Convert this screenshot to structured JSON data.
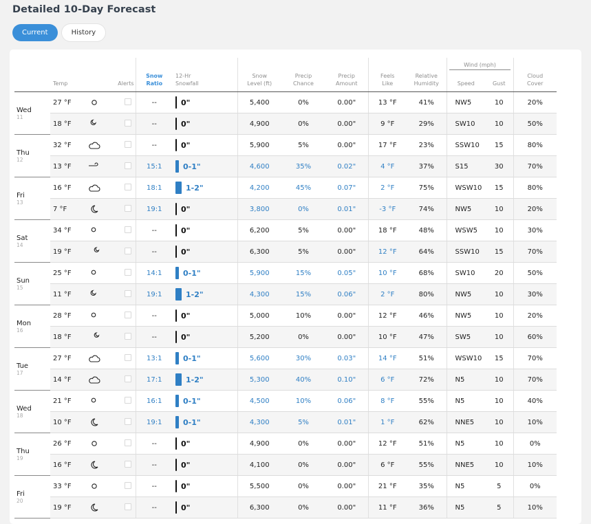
{
  "title": "Detailed 10-Day Forecast",
  "tabs": [
    {
      "label": "Current",
      "active": true
    },
    {
      "label": "History",
      "active": false
    }
  ],
  "colors": {
    "accent": "#3a8fd9",
    "snow": "#2f7fc4"
  },
  "headers": {
    "temp": "Temp",
    "alerts": "Alerts",
    "snow_ratio": [
      "Snow",
      "Ratio"
    ],
    "snowfall": [
      "12-Hr",
      "Snowfall"
    ],
    "snow_level": [
      "Snow",
      "Level (ft)"
    ],
    "precip_chance": [
      "Precip",
      "Chance"
    ],
    "precip_amount": [
      "Precip",
      "Amount"
    ],
    "feels_like": [
      "Feels",
      "Like"
    ],
    "humidity": [
      "Relative",
      "Humidity"
    ],
    "wind": "Wind (mph)",
    "speed": "Speed",
    "gust": "Gust",
    "cloud": [
      "Cloud",
      "Cover"
    ]
  },
  "days": [
    {
      "name": "Wed",
      "num": "11",
      "rows": [
        {
          "temp": "27 °F",
          "icon": "sun-icon",
          "ratio": "--",
          "snowfall": "0\"",
          "bar": "zero",
          "level": "5,400",
          "chance": "0%",
          "amount": "0.00\"",
          "feels": "13 °F",
          "hum": "41%",
          "wind": "NW5",
          "gust": "10",
          "cloud": "20%",
          "snow": false
        },
        {
          "temp": "18 °F",
          "icon": "moon-cloud-icon",
          "ratio": "--",
          "snowfall": "0\"",
          "bar": "zero",
          "level": "4,900",
          "chance": "0%",
          "amount": "0.00\"",
          "feels": "9 °F",
          "hum": "29%",
          "wind": "SW10",
          "gust": "10",
          "cloud": "50%",
          "snow": false
        }
      ]
    },
    {
      "name": "Thu",
      "num": "12",
      "rows": [
        {
          "temp": "32 °F",
          "icon": "cloud-icon",
          "ratio": "--",
          "snowfall": "0\"",
          "bar": "zero",
          "level": "5,900",
          "chance": "5%",
          "amount": "0.00\"",
          "feels": "17 °F",
          "hum": "23%",
          "wind": "SSW10",
          "gust": "15",
          "cloud": "80%",
          "snow": false
        },
        {
          "temp": "13 °F",
          "icon": "wind-icon",
          "ratio": "15:1",
          "snowfall": "0-1\"",
          "bar": "small",
          "level": "4,600",
          "chance": "35%",
          "amount": "0.02\"",
          "feels": "4 °F",
          "hum": "37%",
          "wind": "S15",
          "gust": "30",
          "cloud": "70%",
          "snow": true
        }
      ]
    },
    {
      "name": "Fri",
      "num": "13",
      "rows": [
        {
          "temp": "16 °F",
          "icon": "cloud-icon",
          "ratio": "18:1",
          "snowfall": "1-2\"",
          "bar": "big",
          "level": "4,200",
          "chance": "45%",
          "amount": "0.07\"",
          "feels": "2 °F",
          "hum": "75%",
          "wind": "WSW10",
          "gust": "15",
          "cloud": "80%",
          "snow": true
        },
        {
          "temp": "7 °F",
          "icon": "moon-icon",
          "ratio": "19:1",
          "snowfall": "0\"",
          "bar": "zero",
          "level": "3,800",
          "chance": "0%",
          "amount": "0.01\"",
          "feels": "-3 °F",
          "hum": "74%",
          "wind": "NW5",
          "gust": "10",
          "cloud": "20%",
          "snow": true
        }
      ]
    },
    {
      "name": "Sat",
      "num": "14",
      "rows": [
        {
          "temp": "34 °F",
          "icon": "sun-cloud-icon",
          "ratio": "--",
          "snowfall": "0\"",
          "bar": "zero",
          "level": "6,200",
          "chance": "5%",
          "amount": "0.00\"",
          "feels": "18 °F",
          "hum": "48%",
          "wind": "WSW5",
          "gust": "10",
          "cloud": "30%",
          "snow": false
        },
        {
          "temp": "19 °F",
          "icon": "cloud-moon-icon",
          "ratio": "--",
          "snowfall": "0\"",
          "bar": "zero",
          "level": "6,300",
          "chance": "5%",
          "amount": "0.00\"",
          "feels": "12 °F",
          "hum": "64%",
          "wind": "SSW10",
          "gust": "15",
          "cloud": "70%",
          "snow": false,
          "feelsBlue": true
        }
      ]
    },
    {
      "name": "Sun",
      "num": "15",
      "rows": [
        {
          "temp": "25 °F",
          "icon": "sun-cloud-icon",
          "ratio": "14:1",
          "snowfall": "0-1\"",
          "bar": "small",
          "level": "5,900",
          "chance": "15%",
          "amount": "0.05\"",
          "feels": "10 °F",
          "hum": "68%",
          "wind": "SW10",
          "gust": "20",
          "cloud": "50%",
          "snow": true
        },
        {
          "temp": "11 °F",
          "icon": "moon-cloud-icon",
          "ratio": "19:1",
          "snowfall": "1-2\"",
          "bar": "big",
          "level": "4,300",
          "chance": "15%",
          "amount": "0.06\"",
          "feels": "2 °F",
          "hum": "80%",
          "wind": "NW5",
          "gust": "10",
          "cloud": "30%",
          "snow": true
        }
      ]
    },
    {
      "name": "Mon",
      "num": "16",
      "rows": [
        {
          "temp": "28 °F",
          "icon": "sun-cloud-icon",
          "ratio": "--",
          "snowfall": "0\"",
          "bar": "zero",
          "level": "5,000",
          "chance": "10%",
          "amount": "0.00\"",
          "feels": "12 °F",
          "hum": "46%",
          "wind": "NW5",
          "gust": "10",
          "cloud": "20%",
          "snow": false
        },
        {
          "temp": "18 °F",
          "icon": "cloud-moon-icon",
          "ratio": "--",
          "snowfall": "0\"",
          "bar": "zero",
          "level": "5,200",
          "chance": "0%",
          "amount": "0.00\"",
          "feels": "10 °F",
          "hum": "47%",
          "wind": "SW5",
          "gust": "10",
          "cloud": "60%",
          "snow": false
        }
      ]
    },
    {
      "name": "Tue",
      "num": "17",
      "rows": [
        {
          "temp": "27 °F",
          "icon": "cloud-icon",
          "ratio": "13:1",
          "snowfall": "0-1\"",
          "bar": "small",
          "level": "5,600",
          "chance": "30%",
          "amount": "0.03\"",
          "feels": "14 °F",
          "hum": "51%",
          "wind": "WSW10",
          "gust": "15",
          "cloud": "70%",
          "snow": true
        },
        {
          "temp": "14 °F",
          "icon": "cloud-icon",
          "ratio": "17:1",
          "snowfall": "1-2\"",
          "bar": "big",
          "level": "5,300",
          "chance": "40%",
          "amount": "0.10\"",
          "feels": "6 °F",
          "hum": "72%",
          "wind": "N5",
          "gust": "10",
          "cloud": "70%",
          "snow": true
        }
      ]
    },
    {
      "name": "Wed",
      "num": "18",
      "rows": [
        {
          "temp": "21 °F",
          "icon": "sun-cloud-icon",
          "ratio": "16:1",
          "snowfall": "0-1\"",
          "bar": "small",
          "level": "4,500",
          "chance": "10%",
          "amount": "0.06\"",
          "feels": "8 °F",
          "hum": "55%",
          "wind": "N5",
          "gust": "10",
          "cloud": "40%",
          "snow": true
        },
        {
          "temp": "10 °F",
          "icon": "moon-icon",
          "ratio": "19:1",
          "snowfall": "0-1\"",
          "bar": "small",
          "level": "4,300",
          "chance": "5%",
          "amount": "0.01\"",
          "feels": "1 °F",
          "hum": "62%",
          "wind": "NNE5",
          "gust": "10",
          "cloud": "10%",
          "snow": true
        }
      ]
    },
    {
      "name": "Thu",
      "num": "19",
      "rows": [
        {
          "temp": "26 °F",
          "icon": "sun-icon",
          "ratio": "--",
          "snowfall": "0\"",
          "bar": "zero",
          "level": "4,900",
          "chance": "0%",
          "amount": "0.00\"",
          "feels": "12 °F",
          "hum": "51%",
          "wind": "N5",
          "gust": "10",
          "cloud": "0%",
          "snow": false
        },
        {
          "temp": "16 °F",
          "icon": "moon-icon",
          "ratio": "--",
          "snowfall": "0\"",
          "bar": "zero",
          "level": "4,100",
          "chance": "0%",
          "amount": "0.00\"",
          "feels": "6 °F",
          "hum": "55%",
          "wind": "NNE5",
          "gust": "10",
          "cloud": "10%",
          "snow": false
        }
      ]
    },
    {
      "name": "Fri",
      "num": "20",
      "rows": [
        {
          "temp": "33 °F",
          "icon": "sun-icon",
          "ratio": "--",
          "snowfall": "0\"",
          "bar": "zero",
          "level": "5,500",
          "chance": "0%",
          "amount": "0.00\"",
          "feels": "21 °F",
          "hum": "35%",
          "wind": "N5",
          "gust": "5",
          "cloud": "0%",
          "snow": false
        },
        {
          "temp": "19 °F",
          "icon": "moon-icon",
          "ratio": "--",
          "snowfall": "0\"",
          "bar": "zero",
          "level": "6,300",
          "chance": "0%",
          "amount": "0.00\"",
          "feels": "11 °F",
          "hum": "36%",
          "wind": "N5",
          "gust": "5",
          "cloud": "10%",
          "snow": false
        }
      ]
    }
  ]
}
